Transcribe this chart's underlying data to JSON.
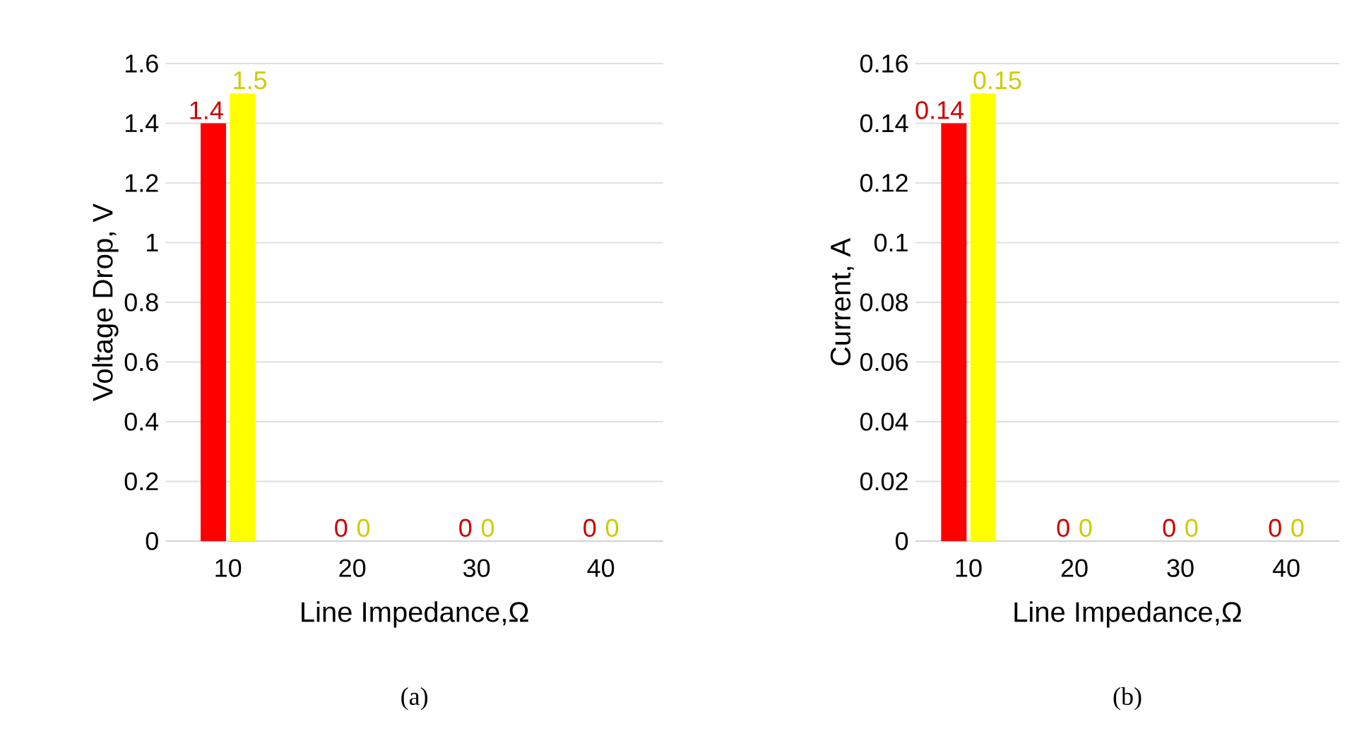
{
  "chart_data": [
    {
      "type": "bar",
      "categories": [
        "10",
        "20",
        "30",
        "40"
      ],
      "xlabel": "Line Impedance,Ω",
      "ylabel": "Voltage Drop, V",
      "series": [
        {
          "color": "#ff0000",
          "values": [
            1.4,
            0,
            0,
            0
          ]
        },
        {
          "color": "#ffff00",
          "values": [
            1.5,
            0,
            0,
            0
          ]
        }
      ],
      "ylim": [
        0,
        1.6
      ],
      "yticks": [
        0,
        0.2,
        0.4,
        0.6,
        0.8,
        1,
        1.2,
        1.4,
        1.6
      ],
      "grid": "y",
      "data_labels": true,
      "annotations": [
        "(a)"
      ]
    },
    {
      "type": "bar",
      "categories": [
        "10",
        "20",
        "30",
        "40"
      ],
      "xlabel": "Line Impedance,Ω",
      "ylabel": "Current, A",
      "series": [
        {
          "color": "#ff0000",
          "values": [
            0.14,
            0,
            0,
            0
          ]
        },
        {
          "color": "#ffff00",
          "values": [
            0.15,
            0,
            0,
            0
          ]
        }
      ],
      "ylim": [
        0,
        0.16
      ],
      "yticks": [
        0,
        0.02,
        0.04,
        0.06,
        0.08,
        0.1,
        0.12,
        0.14,
        0.16
      ],
      "grid": "y",
      "data_labels": true,
      "annotations": [
        "(b)"
      ]
    }
  ]
}
